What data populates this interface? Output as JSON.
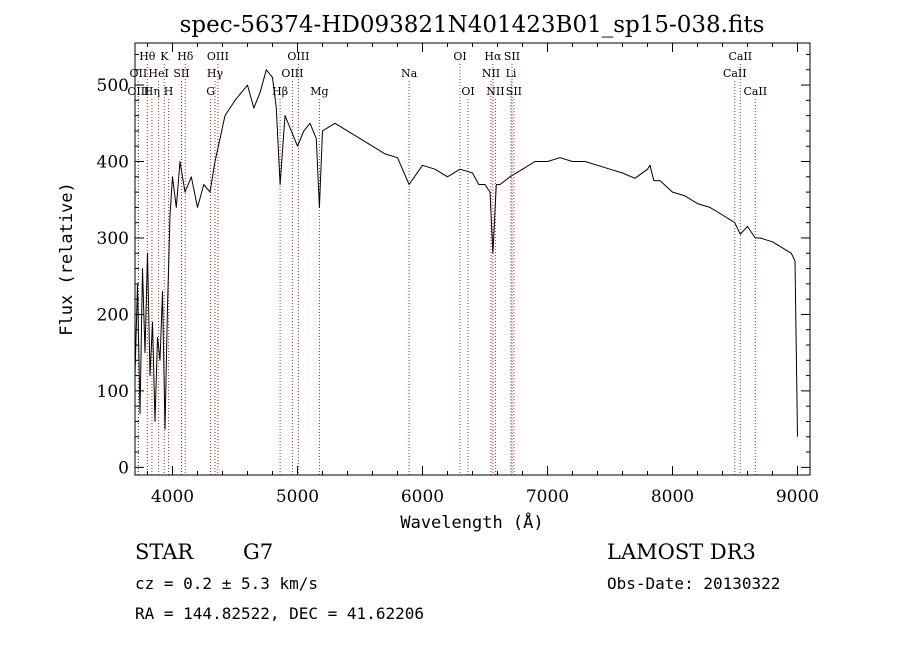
{
  "chart_data": {
    "type": "line",
    "title": "spec-56374-HD093821N401423B01_sp15-038.fits",
    "xlabel": "Wavelength (Å)",
    "ylabel": "Flux (relative)",
    "xlim": [
      3700,
      9100
    ],
    "ylim": [
      -10,
      555
    ],
    "xticks": [
      4000,
      5000,
      6000,
      7000,
      8000,
      9000
    ],
    "yticks": [
      0,
      100,
      200,
      300,
      400,
      500
    ],
    "series": [
      {
        "name": "flux",
        "x": [
          3700,
          3720,
          3740,
          3760,
          3780,
          3800,
          3820,
          3840,
          3860,
          3880,
          3900,
          3920,
          3940,
          3960,
          3980,
          4000,
          4030,
          4060,
          4100,
          4150,
          4200,
          4250,
          4300,
          4340,
          4380,
          4420,
          4460,
          4500,
          4550,
          4600,
          4650,
          4700,
          4750,
          4800,
          4830,
          4861,
          4900,
          4950,
          5000,
          5050,
          5100,
          5150,
          5175,
          5200,
          5300,
          5400,
          5500,
          5600,
          5700,
          5800,
          5893,
          6000,
          6100,
          6200,
          6300,
          6400,
          6450,
          6500,
          6540,
          6563,
          6590,
          6620,
          6700,
          6800,
          6900,
          7000,
          7100,
          7200,
          7300,
          7400,
          7500,
          7600,
          7700,
          7800,
          7820,
          7850,
          7900,
          8000,
          8100,
          8200,
          8300,
          8400,
          8498,
          8542,
          8600,
          8662,
          8700,
          8800,
          8900,
          8950,
          8980,
          9000
        ],
        "y": [
          120,
          240,
          70,
          260,
          150,
          280,
          120,
          190,
          60,
          170,
          140,
          230,
          50,
          210,
          330,
          380,
          340,
          400,
          360,
          380,
          340,
          370,
          360,
          400,
          430,
          460,
          470,
          480,
          490,
          500,
          470,
          490,
          520,
          510,
          470,
          370,
          460,
          440,
          420,
          440,
          450,
          430,
          340,
          440,
          450,
          440,
          430,
          420,
          410,
          405,
          370,
          395,
          390,
          380,
          390,
          385,
          370,
          370,
          360,
          280,
          370,
          370,
          380,
          390,
          400,
          400,
          405,
          400,
          400,
          395,
          390,
          385,
          378,
          390,
          395,
          375,
          375,
          360,
          355,
          345,
          340,
          330,
          320,
          305,
          315,
          300,
          300,
          295,
          285,
          280,
          270,
          40
        ]
      }
    ],
    "line_annotations": [
      {
        "label": "Hθ",
        "wavelength": 3798,
        "row": 0
      },
      {
        "label": "OII",
        "wavelength": 3727,
        "row": 1
      },
      {
        "label": "OIII",
        "wavelength": 3727,
        "row": 2
      },
      {
        "label": "K",
        "wavelength": 3934,
        "row": 0
      },
      {
        "label": "HeI",
        "wavelength": 3889,
        "row": 1
      },
      {
        "label": "Hη",
        "wavelength": 3835,
        "row": 2
      },
      {
        "label": "Hδ",
        "wavelength": 4102,
        "row": 0
      },
      {
        "label": "SII",
        "wavelength": 4072,
        "row": 1
      },
      {
        "label": "H",
        "wavelength": 3969,
        "row": 2
      },
      {
        "label": "OIII",
        "wavelength": 4363,
        "row": 0
      },
      {
        "label": "Hγ",
        "wavelength": 4340,
        "row": 1
      },
      {
        "label": "G",
        "wavelength": 4305,
        "row": 2
      },
      {
        "label": "OIII",
        "wavelength": 5007,
        "row": 0
      },
      {
        "label": "OIII",
        "wavelength": 4959,
        "row": 1
      },
      {
        "label": "Hβ",
        "wavelength": 4861,
        "row": 2
      },
      {
        "label": "Mg",
        "wavelength": 5175,
        "row": 2
      },
      {
        "label": "Na",
        "wavelength": 5893,
        "row": 1
      },
      {
        "label": "OI",
        "wavelength": 6300,
        "row": 0
      },
      {
        "label": "OI",
        "wavelength": 6364,
        "row": 2
      },
      {
        "label": "Hα",
        "wavelength": 6563,
        "row": 0
      },
      {
        "label": "NII",
        "wavelength": 6548,
        "row": 1
      },
      {
        "label": "NII",
        "wavelength": 6583,
        "row": 2
      },
      {
        "label": "SII",
        "wavelength": 6716,
        "row": 0
      },
      {
        "label": "Li",
        "wavelength": 6708,
        "row": 1
      },
      {
        "label": "SII",
        "wavelength": 6731,
        "row": 2
      },
      {
        "label": "CaII",
        "wavelength": 8542,
        "row": 0
      },
      {
        "label": "CaII",
        "wavelength": 8498,
        "row": 1
      },
      {
        "label": "CaII",
        "wavelength": 8662,
        "row": 2
      }
    ]
  },
  "info": {
    "object_class": "STAR",
    "subclass": "G7",
    "survey": "LAMOST DR3",
    "redshift": "cz = 0.2 ± 5.3 km/s",
    "obs_date": "Obs-Date: 20130322",
    "coords": "RA = 144.82522, DEC =  41.62206"
  },
  "colors": {
    "spectrum": "#000000",
    "marker_lines": "#b22222",
    "axes": "#000000"
  }
}
